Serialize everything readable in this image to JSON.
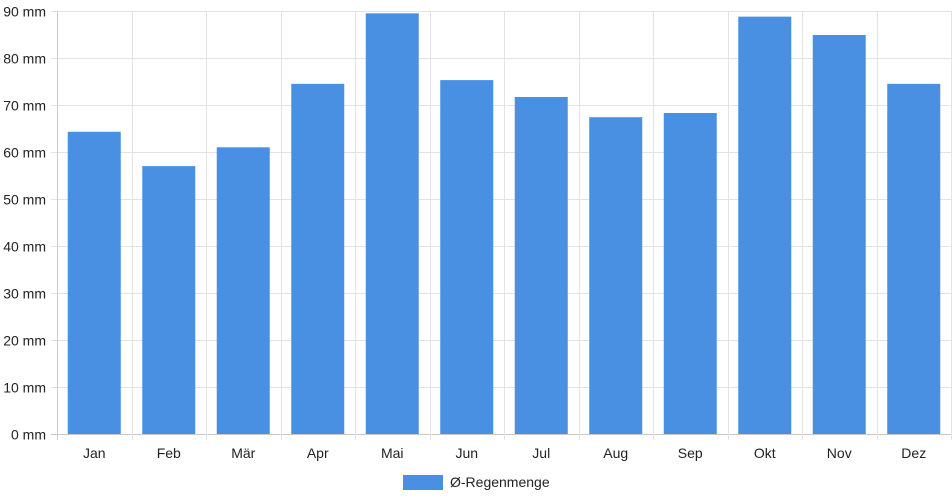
{
  "chart_data": {
    "type": "bar",
    "title": "",
    "xlabel": "",
    "ylabel": "",
    "categories": [
      "Jan",
      "Feb",
      "Mär",
      "Apr",
      "Mai",
      "Jun",
      "Jul",
      "Aug",
      "Sep",
      "Okt",
      "Nov",
      "Dez"
    ],
    "series": [
      {
        "name": "Ø-Regenmenge",
        "color": "#4a90e2",
        "values": [
          64.3,
          57.0,
          61.0,
          74.5,
          89.5,
          75.3,
          71.7,
          67.4,
          68.3,
          88.8,
          84.9,
          74.5
        ]
      }
    ],
    "ylim": [
      0,
      90
    ],
    "yticks": [
      "0 mm",
      "10 mm",
      "20 mm",
      "30 mm",
      "40 mm",
      "50 mm",
      "60 mm",
      "70 mm",
      "80 mm",
      "90 mm"
    ],
    "grid": true,
    "legend_position": "bottom-center"
  },
  "colors": {
    "grid": "#e3e3e3",
    "axis": "#c8c8c8",
    "text": "#222222"
  }
}
